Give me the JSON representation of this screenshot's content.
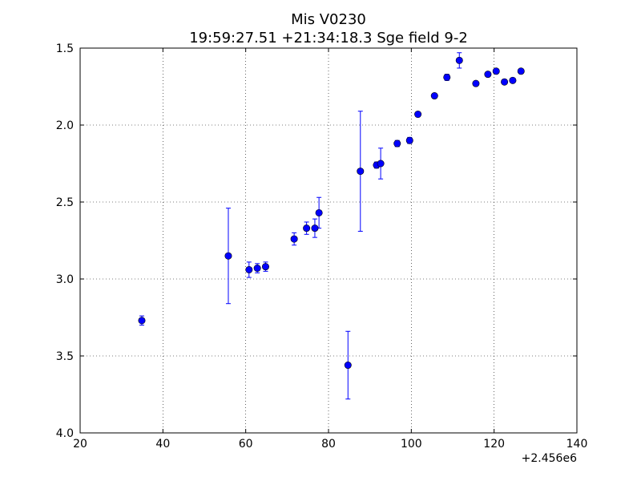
{
  "chart_data": {
    "type": "scatter",
    "title": "Mis V0230",
    "subtitle": "19:59:27.51 +21:34:18.3 Sge field 9-2",
    "xlabel": "",
    "ylabel": "",
    "x_offset_label": "+2.456e6",
    "xlim": [
      20,
      140
    ],
    "ylim": [
      4.0,
      1.5
    ],
    "y_inverted": true,
    "grid": true,
    "x_ticks": [
      20,
      40,
      60,
      80,
      100,
      120,
      140
    ],
    "x_tick_labels": [
      "20",
      "40",
      "60",
      "80",
      "100",
      "120",
      "140"
    ],
    "y_ticks": [
      1.5,
      2.0,
      2.5,
      3.0,
      3.5,
      4.0
    ],
    "y_tick_labels": [
      "1.5",
      "2.0",
      "2.5",
      "3.0",
      "3.5",
      "4.0"
    ],
    "marker_color": "#0000ff",
    "points": [
      {
        "x": 2456034.9,
        "y": 3.27,
        "err": 0.03
      },
      {
        "x": 2456055.8,
        "y": 2.85,
        "err": 0.31
      },
      {
        "x": 2456060.8,
        "y": 2.94,
        "err": 0.05
      },
      {
        "x": 2456062.8,
        "y": 2.93,
        "err": 0.03
      },
      {
        "x": 2456064.8,
        "y": 2.92,
        "err": 0.03
      },
      {
        "x": 2456071.7,
        "y": 2.74,
        "err": 0.04
      },
      {
        "x": 2456074.7,
        "y": 2.67,
        "err": 0.04
      },
      {
        "x": 2456076.7,
        "y": 2.67,
        "err": 0.06
      },
      {
        "x": 2456077.7,
        "y": 2.57,
        "err": 0.1
      },
      {
        "x": 2456084.7,
        "y": 3.56,
        "err": 0.22
      },
      {
        "x": 2456087.7,
        "y": 2.3,
        "err": 0.39
      },
      {
        "x": 2456091.6,
        "y": 2.26,
        "err": 0.02
      },
      {
        "x": 2456092.6,
        "y": 2.25,
        "err": 0.1
      },
      {
        "x": 2456096.6,
        "y": 2.12,
        "err": 0.02
      },
      {
        "x": 2456099.6,
        "y": 2.1,
        "err": 0.02
      },
      {
        "x": 2456101.6,
        "y": 1.93,
        "err": 0.01
      },
      {
        "x": 2456105.6,
        "y": 1.81,
        "err": 0.01
      },
      {
        "x": 2456108.6,
        "y": 1.69,
        "err": 0.02
      },
      {
        "x": 2456111.6,
        "y": 1.58,
        "err": 0.05
      },
      {
        "x": 2456115.6,
        "y": 1.73,
        "err": 0.01
      },
      {
        "x": 2456118.5,
        "y": 1.67,
        "err": 0.01
      },
      {
        "x": 2456120.5,
        "y": 1.65,
        "err": 0.01
      },
      {
        "x": 2456122.5,
        "y": 1.72,
        "err": 0.01
      },
      {
        "x": 2456124.5,
        "y": 1.71,
        "err": 0.01
      },
      {
        "x": 2456126.5,
        "y": 1.65,
        "err": 0.01
      }
    ]
  }
}
